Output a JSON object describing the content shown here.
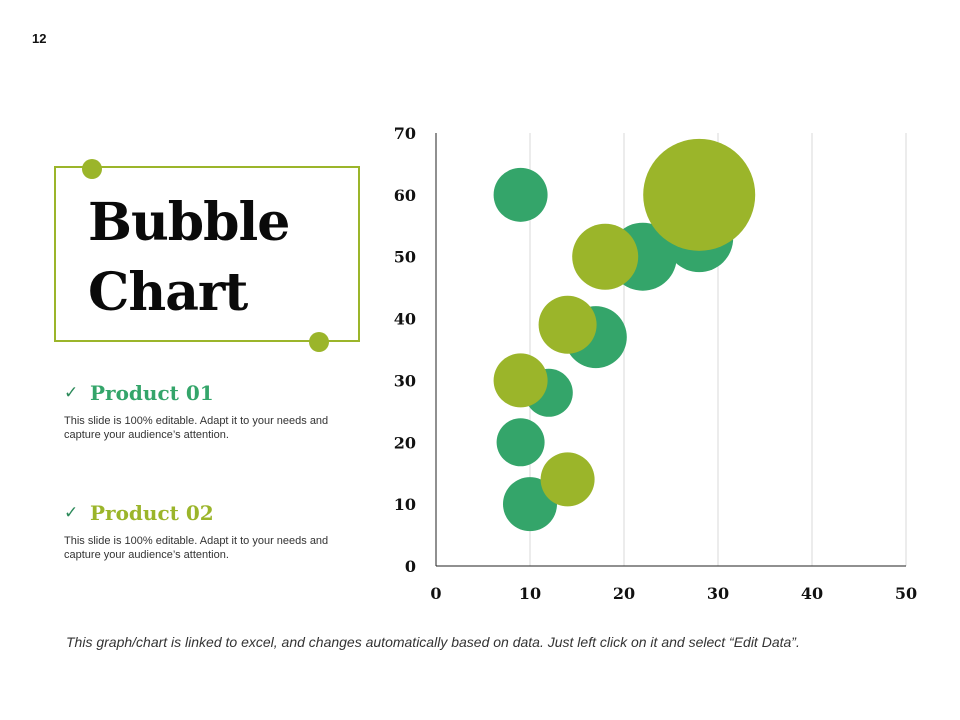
{
  "slide": {
    "number": "12"
  },
  "title": {
    "line1": "Bubble",
    "line2": "Chart"
  },
  "products": [
    {
      "name": "Product 01",
      "check": "✓",
      "description": "This slide is 100% editable. Adapt it to your needs and capture your audience’s attention."
    },
    {
      "name": "Product 02",
      "check": "✓",
      "description": "This slide is 100% editable. Adapt it to your needs and capture your audience’s attention."
    }
  ],
  "footer": {
    "note": "This graph/chart is linked to excel, and changes automatically based on data. Just left click on it and select “Edit Data”."
  },
  "colors": {
    "accent_olive": "#9bb52a",
    "accent_green": "#34a56a"
  },
  "chart_data": {
    "type": "scatter",
    "subtype": "bubble",
    "title": "",
    "xlabel": "",
    "ylabel": "",
    "xlim": [
      0,
      50
    ],
    "ylim": [
      0,
      70
    ],
    "x_ticks": [
      0,
      10,
      20,
      30,
      40,
      50
    ],
    "y_ticks": [
      0,
      10,
      20,
      30,
      40,
      50,
      60,
      70
    ],
    "grid": "vertical",
    "series": [
      {
        "name": "Product 01",
        "color": "#34a56a",
        "points": [
          {
            "x": 9,
            "y": 60,
            "size": 27
          },
          {
            "x": 22,
            "y": 50,
            "size": 34
          },
          {
            "x": 28,
            "y": 53,
            "size": 34
          },
          {
            "x": 17,
            "y": 37,
            "size": 31
          },
          {
            "x": 12,
            "y": 28,
            "size": 24
          },
          {
            "x": 9,
            "y": 20,
            "size": 24
          },
          {
            "x": 10,
            "y": 10,
            "size": 27
          }
        ]
      },
      {
        "name": "Product 02",
        "color": "#9bb52a",
        "points": [
          {
            "x": 28,
            "y": 60,
            "size": 56
          },
          {
            "x": 18,
            "y": 50,
            "size": 33
          },
          {
            "x": 14,
            "y": 39,
            "size": 29
          },
          {
            "x": 9,
            "y": 30,
            "size": 27
          },
          {
            "x": 14,
            "y": 14,
            "size": 27
          }
        ]
      }
    ]
  }
}
